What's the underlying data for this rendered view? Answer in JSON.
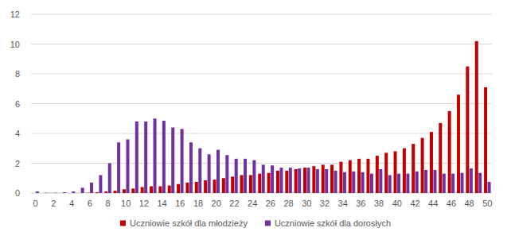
{
  "chart_data": {
    "type": "bar",
    "categories": [
      "0",
      null,
      "2",
      null,
      "4",
      null,
      "6",
      null,
      "8",
      null,
      "10",
      null,
      "12",
      null,
      "14",
      null,
      "16",
      null,
      "18",
      null,
      "20",
      null,
      "22",
      null,
      "24",
      null,
      "26",
      null,
      "28",
      null,
      "30",
      null,
      "32",
      null,
      "34",
      null,
      "36",
      null,
      "38",
      null,
      "40",
      null,
      "42",
      null,
      "44",
      null,
      "46",
      null,
      "48",
      null,
      "50"
    ],
    "series": [
      {
        "name": "Uczniowie szkół dla młodzieży",
        "color": "#c00000",
        "values": [
          0,
          0,
          0,
          0,
          0,
          0,
          0.02,
          0.05,
          0.1,
          0.15,
          0.25,
          0.3,
          0.4,
          0.45,
          0.45,
          0.5,
          0.6,
          0.7,
          0.75,
          0.85,
          0.9,
          1.0,
          1.1,
          1.2,
          1.2,
          1.3,
          1.35,
          1.5,
          1.5,
          1.6,
          1.7,
          1.8,
          1.9,
          1.9,
          2.1,
          2.2,
          2.3,
          2.3,
          2.5,
          2.7,
          2.8,
          3.0,
          3.3,
          3.7,
          4.1,
          4.7,
          5.5,
          6.6,
          8.5,
          10.2,
          7.1
        ]
      },
      {
        "name": "Uczniowie szkół dla dorosłych",
        "color": "#7030a0",
        "values": [
          0.1,
          0.02,
          0.02,
          0.05,
          0.1,
          0.35,
          0.7,
          1.2,
          2.0,
          3.4,
          3.6,
          4.8,
          4.8,
          5.0,
          4.85,
          4.4,
          4.3,
          3.4,
          3.0,
          2.6,
          2.9,
          2.55,
          2.3,
          2.3,
          2.2,
          1.9,
          1.85,
          1.7,
          1.7,
          1.65,
          1.7,
          1.6,
          1.6,
          1.5,
          1.4,
          1.45,
          1.4,
          1.3,
          1.6,
          1.2,
          1.3,
          1.3,
          1.45,
          1.55,
          1.55,
          1.3,
          1.3,
          1.35,
          1.65,
          1.35,
          0.75
        ]
      }
    ],
    "ylim": [
      0,
      12
    ],
    "yticks": [
      0,
      2,
      4,
      6,
      8,
      10,
      12
    ],
    "grid": true,
    "legend": "bottom"
  }
}
